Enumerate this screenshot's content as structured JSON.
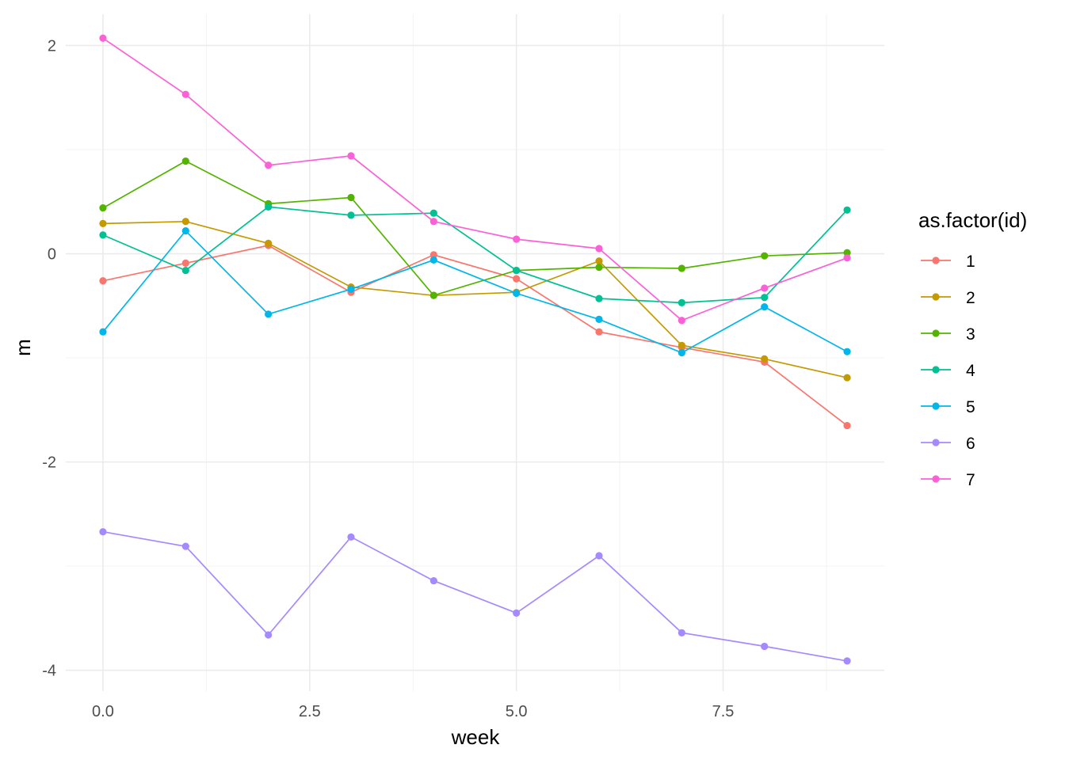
{
  "chart_data": {
    "type": "line",
    "xlabel": "week",
    "ylabel": "m",
    "xlim": [
      -0.45,
      9.45
    ],
    "ylim": [
      -4.2,
      2.3
    ],
    "x_ticks": [
      0,
      2.5,
      5,
      7.5
    ],
    "x_tick_labels": [
      "0.0",
      "2.5",
      "5.0",
      "7.5"
    ],
    "x_minor_ticks": [
      1.25,
      3.75,
      6.25,
      8.75
    ],
    "y_ticks": [
      -4,
      -2,
      0,
      2
    ],
    "y_tick_labels": [
      "-4",
      "-2",
      "0",
      "2"
    ],
    "y_minor_ticks": [
      -3,
      -1,
      1
    ],
    "grid": true,
    "legend": {
      "title": "as.factor(id)",
      "position": "right"
    },
    "x": [
      0,
      1,
      2,
      3,
      4,
      5,
      6,
      7,
      8,
      9
    ],
    "series": [
      {
        "name": "1",
        "color": "#F8766D",
        "values": [
          -0.26,
          -0.09,
          0.08,
          -0.37,
          -0.01,
          -0.24,
          -0.75,
          -0.9,
          -1.04,
          -1.65
        ]
      },
      {
        "name": "2",
        "color": "#C49A00",
        "values": [
          0.29,
          0.31,
          0.1,
          -0.32,
          -0.4,
          -0.37,
          -0.07,
          -0.88,
          -1.01,
          -1.19
        ]
      },
      {
        "name": "3",
        "color": "#53B400",
        "values": [
          0.44,
          0.89,
          0.48,
          0.54,
          -0.4,
          -0.16,
          -0.13,
          -0.14,
          -0.02,
          0.01
        ]
      },
      {
        "name": "4",
        "color": "#00C094",
        "values": [
          0.18,
          -0.16,
          0.45,
          0.37,
          0.39,
          -0.16,
          -0.43,
          -0.47,
          -0.42,
          0.42
        ]
      },
      {
        "name": "5",
        "color": "#00B6EB",
        "values": [
          -0.75,
          0.22,
          -0.58,
          -0.34,
          -0.06,
          -0.38,
          -0.63,
          -0.95,
          -0.51,
          -0.94
        ]
      },
      {
        "name": "6",
        "color": "#A58AFF",
        "values": [
          -2.67,
          -2.81,
          -3.66,
          -2.72,
          -3.14,
          -3.45,
          -2.9,
          -3.64,
          -3.77,
          -3.91
        ]
      },
      {
        "name": "7",
        "color": "#FB61D7",
        "values": [
          2.07,
          1.53,
          0.85,
          0.94,
          0.31,
          0.14,
          0.05,
          -0.64,
          -0.33,
          -0.04
        ]
      }
    ]
  }
}
